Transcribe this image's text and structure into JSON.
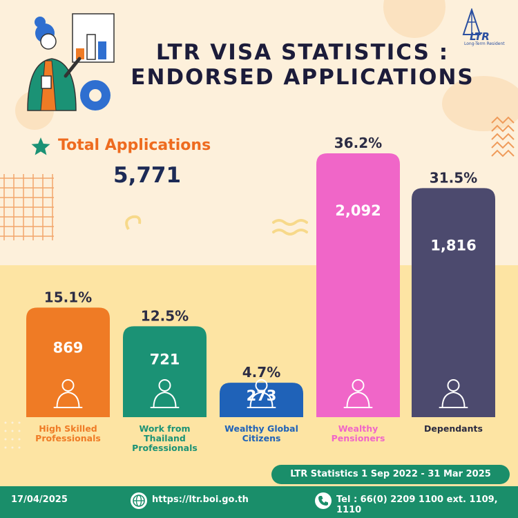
{
  "title": {
    "line1": "LTR VISA STATISTICS :",
    "line2": "ENDORSED APPLICATIONS"
  },
  "logo": {
    "text": "LTR",
    "sub": "Long-Term Resident"
  },
  "total": {
    "label": "Total Applications",
    "value": "5,771"
  },
  "period": "LTR Statistics 1 Sep 2022 - 31 Mar 2025",
  "footer": {
    "date": "17/04/2025",
    "website": "https://ltr.boi.go.th",
    "phone": "Tel : 66(0) 2209 1100 ext. 1109, 1110"
  },
  "colors": {
    "orange": "#ef7b25",
    "green": "#1b9275",
    "blue": "#1f62b8",
    "pink": "#f066c8",
    "navy": "#4c4a6e"
  },
  "chart_data": {
    "type": "bar",
    "categories": [
      "High Skilled Professionals",
      "Work from Thailand Professionals",
      "Wealthy Global Citizens",
      "Wealthy Pensioners",
      "Dependants"
    ],
    "values": [
      869,
      721,
      273,
      2092,
      1816
    ],
    "value_labels": [
      "869",
      "721",
      "273",
      "2,092",
      "1,816"
    ],
    "percents": [
      "15.1%",
      "12.5%",
      "4.7%",
      "36.2%",
      "31.5%"
    ],
    "category_label_lines": [
      [
        "High Skilled",
        "Professionals"
      ],
      [
        "Work from",
        "Thailand",
        "Professionals"
      ],
      [
        "Wealthy Global",
        "Citizens"
      ],
      [
        "Wealthy",
        "Pensioners"
      ],
      [
        "Dependants"
      ]
    ],
    "bar_colors": [
      "#ef7b25",
      "#1b9275",
      "#1f62b8",
      "#f066c8",
      "#4c4a6e"
    ],
    "label_colors": [
      "#ef7b25",
      "#1b9275",
      "#1f62b8",
      "#f066c8",
      "#2a2a40"
    ],
    "icons": [
      "professional-scientist-icon",
      "office-building-worker-icon",
      "wealthy-investor-icon",
      "pensioner-money-bag-icon",
      "family-icon"
    ],
    "ylim": [
      0,
      2092
    ]
  }
}
